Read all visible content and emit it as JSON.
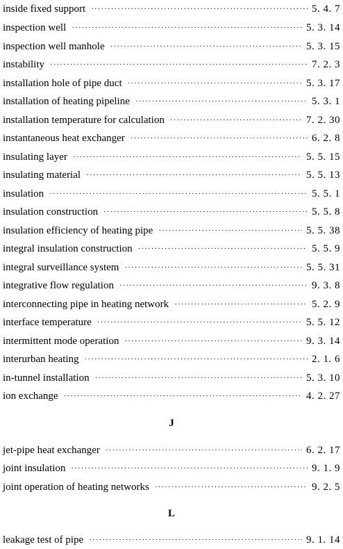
{
  "entries_i": [
    {
      "term": "inside fixed support",
      "ref": "5. 4. 7"
    },
    {
      "term": "inspection well",
      "ref": "5. 3. 14"
    },
    {
      "term": "inspection well manhole",
      "ref": "5. 3. 15"
    },
    {
      "term": "instability",
      "ref": "7. 2. 3"
    },
    {
      "term": "installation hole of pipe duct",
      "ref": "5. 3. 17"
    },
    {
      "term": "installation of heating pipeline",
      "ref": "5. 3. 1"
    },
    {
      "term": "installation temperature for calculation",
      "ref": "7. 2. 30"
    },
    {
      "term": "instantaneous heat exchanger",
      "ref": "6. 2. 8"
    },
    {
      "term": "insulating layer",
      "ref": "5. 5. 15"
    },
    {
      "term": "insulating material",
      "ref": "5. 5. 13"
    },
    {
      "term": "insulation",
      "ref": "5. 5. 1"
    },
    {
      "term": "insulation construction",
      "ref": "5. 5. 8"
    },
    {
      "term": "insulation efficiency of heating pipe",
      "ref": "5. 5. 38"
    },
    {
      "term": "integral insulation construction",
      "ref": "5. 5. 9"
    },
    {
      "term": "integral surveillance system",
      "ref": "5. 5. 31"
    },
    {
      "term": "integrative flow regulation",
      "ref": "9. 3. 8"
    },
    {
      "term": "interconnecting pipe in heating network",
      "ref": "5. 2. 9"
    },
    {
      "term": "interface temperature",
      "ref": "5. 5. 12"
    },
    {
      "term": "intermittent mode operation",
      "ref": "9. 3. 14"
    },
    {
      "term": "interurban heating",
      "ref": "2. 1. 6"
    },
    {
      "term": "in-tunnel installation",
      "ref": "5. 3. 10"
    },
    {
      "term": "ion exchange",
      "ref": "4. 2. 27"
    }
  ],
  "section_j": {
    "heading": "J",
    "entries": [
      {
        "term": "jet-pipe heat exchanger",
        "ref": "6. 2. 17"
      },
      {
        "term": "joint insulation",
        "ref": "9. 1. 9"
      },
      {
        "term": "joint operation of heating networks",
        "ref": "9. 2. 5"
      }
    ]
  },
  "section_l": {
    "heading": "L",
    "entries": [
      {
        "term": "leakage test of pipe",
        "ref": "9. 1. 14"
      }
    ]
  }
}
